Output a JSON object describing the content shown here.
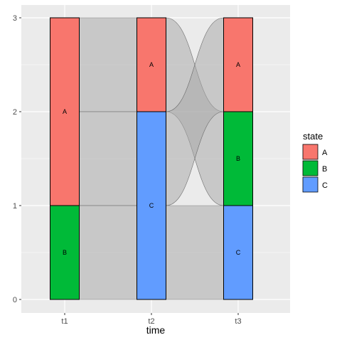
{
  "chart_data": {
    "type": "alluvial",
    "axes": [
      "t1",
      "t2",
      "t3"
    ],
    "xlabel": "time",
    "ylabel": "",
    "ylim": [
      0,
      3
    ],
    "yticks": [
      0,
      1,
      2,
      3
    ],
    "grid": true,
    "legend": {
      "title": "state",
      "position": "right",
      "entries": [
        {
          "label": "A",
          "color": "#F8766D"
        },
        {
          "label": "B",
          "color": "#00BA38"
        },
        {
          "label": "C",
          "color": "#619CFF"
        }
      ]
    },
    "strata": [
      {
        "axis": "t1",
        "label": "A",
        "y0": 1,
        "y1": 3
      },
      {
        "axis": "t1",
        "label": "B",
        "y0": 0,
        "y1": 1
      },
      {
        "axis": "t2",
        "label": "A",
        "y0": 2,
        "y1": 3
      },
      {
        "axis": "t2",
        "label": "C",
        "y0": 0,
        "y1": 2
      },
      {
        "axis": "t3",
        "label": "A",
        "y0": 2,
        "y1": 3
      },
      {
        "axis": "t3",
        "label": "B",
        "y0": 1,
        "y1": 2
      },
      {
        "axis": "t3",
        "label": "C",
        "y0": 0,
        "y1": 1
      }
    ],
    "flows": [
      {
        "from_axis": "t1",
        "to_axis": "t2",
        "from": [
          2,
          3
        ],
        "to": [
          2,
          3
        ]
      },
      {
        "from_axis": "t1",
        "to_axis": "t2",
        "from": [
          1,
          2
        ],
        "to": [
          1,
          2
        ]
      },
      {
        "from_axis": "t1",
        "to_axis": "t2",
        "from": [
          0,
          1
        ],
        "to": [
          0,
          1
        ]
      },
      {
        "from_axis": "t2",
        "to_axis": "t3",
        "from": [
          2,
          3
        ],
        "to": [
          1,
          2
        ]
      },
      {
        "from_axis": "t2",
        "to_axis": "t3",
        "from": [
          1,
          2
        ],
        "to": [
          2,
          3
        ]
      },
      {
        "from_axis": "t2",
        "to_axis": "t3",
        "from": [
          0,
          1
        ],
        "to": [
          0,
          1
        ]
      }
    ],
    "flow_color": "#a6a6a6",
    "panel_background": "#ebebeb",
    "grid_color": "#ffffff"
  }
}
